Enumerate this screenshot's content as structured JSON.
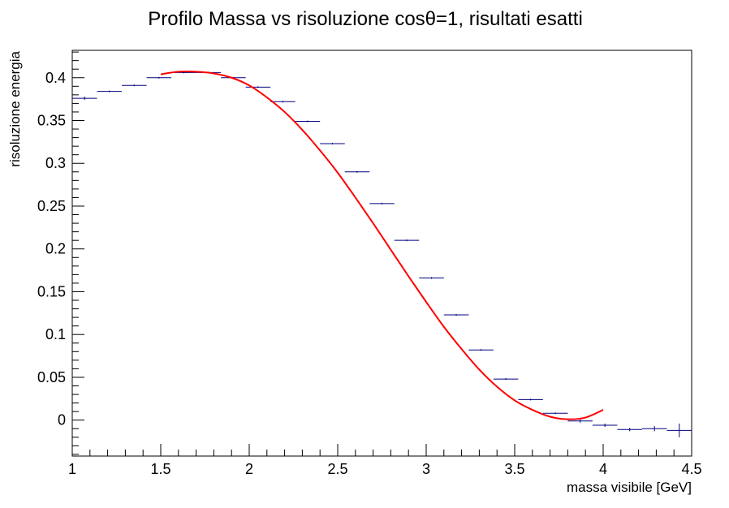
{
  "chart_data": {
    "type": "scatter",
    "title": "Profilo Massa vs risoluzione cosθ=1, risultati esatti",
    "xlabel": "massa visibile [GeV]",
    "ylabel": "risoluzione energia",
    "xlim": [
      1,
      4.5
    ],
    "ylim": [
      -0.042,
      0.432
    ],
    "x_ticks": [
      "1",
      "1.5",
      "2",
      "2.5",
      "3",
      "3.5",
      "4",
      "4.5"
    ],
    "y_ticks": [
      "0",
      "0.05",
      "0.1",
      "0.15",
      "0.2",
      "0.25",
      "0.3",
      "0.35",
      "0.4"
    ],
    "grid": false,
    "legend": "none",
    "colors": {
      "points": "#000080",
      "fit": "#ff0000",
      "frame": "#000000"
    },
    "series": [
      {
        "kind": "profile",
        "bin_width": 0.14,
        "x": [
          1.07,
          1.21,
          1.35,
          1.49,
          1.63,
          1.77,
          1.91,
          2.05,
          2.19,
          2.33,
          2.47,
          2.61,
          2.75,
          2.89,
          3.03,
          3.17,
          3.31,
          3.45,
          3.59,
          3.73,
          3.87,
          4.01,
          4.15,
          4.29,
          4.43
        ],
        "y": [
          0.376,
          0.384,
          0.391,
          0.4,
          0.406,
          0.406,
          0.4,
          0.389,
          0.372,
          0.349,
          0.323,
          0.29,
          0.253,
          0.21,
          0.166,
          0.123,
          0.082,
          0.048,
          0.024,
          0.008,
          -0.001,
          -0.006,
          -0.011,
          -0.01,
          -0.012
        ],
        "err": [
          0.002,
          0.001,
          0.001,
          0.001,
          0.001,
          0.001,
          0.001,
          0.001,
          0.001,
          0.001,
          0.001,
          0.001,
          0.001,
          0.001,
          0.001,
          0.001,
          0.001,
          0.001,
          0.001,
          0.001,
          0.002,
          0.002,
          0.002,
          0.003,
          0.008
        ]
      },
      {
        "kind": "fit",
        "x": [
          1.5,
          1.6,
          1.7,
          1.8,
          1.9,
          2.0,
          2.1,
          2.2,
          2.3,
          2.4,
          2.5,
          2.6,
          2.7,
          2.8,
          2.9,
          3.0,
          3.1,
          3.2,
          3.3,
          3.4,
          3.5,
          3.6,
          3.7,
          3.8,
          3.9,
          4.0
        ],
        "y": [
          0.404,
          0.407,
          0.407,
          0.405,
          0.4,
          0.391,
          0.377,
          0.36,
          0.339,
          0.315,
          0.289,
          0.26,
          0.23,
          0.199,
          0.168,
          0.138,
          0.109,
          0.083,
          0.059,
          0.039,
          0.023,
          0.012,
          0.004,
          0.001,
          0.003,
          0.012
        ]
      }
    ]
  }
}
